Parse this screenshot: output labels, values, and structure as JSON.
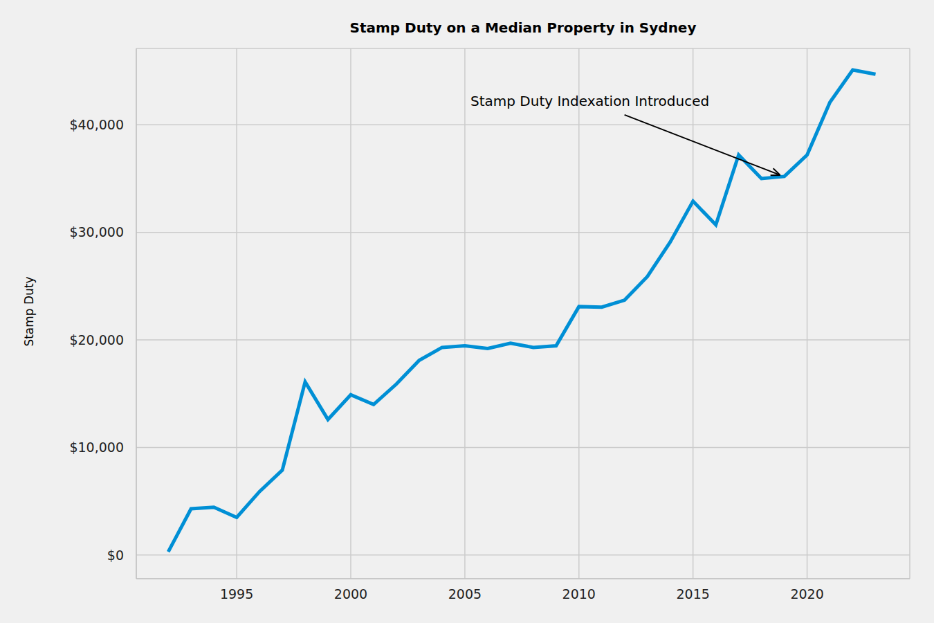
{
  "chart_data": {
    "type": "line",
    "title": "Stamp Duty on a Median Property in Sydney",
    "y_label": "Stamp Duty",
    "x": [
      1992,
      1993,
      1994,
      1995,
      1996,
      1997,
      1998,
      1999,
      2000,
      2001,
      2002,
      2003,
      2004,
      2005,
      2006,
      2007,
      2008,
      2009,
      2010,
      2011,
      2012,
      2013,
      2014,
      2015,
      2016,
      2017,
      2018,
      2019,
      2020,
      2021,
      2022,
      2023
    ],
    "values": [
      300,
      4300,
      4450,
      3500,
      5900,
      7900,
      16100,
      12600,
      14900,
      14000,
      15900,
      18100,
      19300,
      19450,
      19200,
      19700,
      19300,
      19450,
      23100,
      23050,
      23700,
      25900,
      29100,
      32900,
      30700,
      37200,
      35000,
      35200,
      37200,
      42100,
      45100,
      44700
    ],
    "color": "#008fd5",
    "xlim": [
      1990.6,
      2024.5
    ],
    "ylim": [
      -2200,
      47100
    ],
    "xticks": [
      1995,
      2000,
      2005,
      2010,
      2015,
      2020
    ],
    "yticks": [
      {
        "value": 0,
        "label": "$0"
      },
      {
        "value": 10000,
        "label": "$10,000"
      },
      {
        "value": 20000,
        "label": "$20,000"
      },
      {
        "value": 30000,
        "label": "$30,000"
      },
      {
        "value": 40000,
        "label": "$40,000"
      }
    ],
    "grid": true,
    "annotations": [
      {
        "text": "Stamp Duty Indexation Introduced",
        "x": 2019,
        "y": 35200
      }
    ]
  }
}
